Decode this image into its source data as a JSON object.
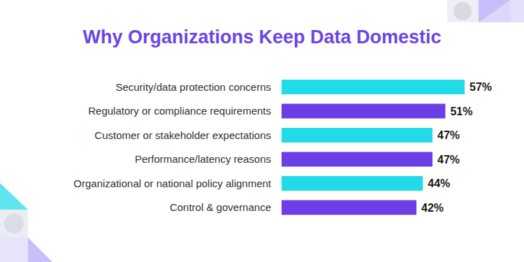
{
  "chart_data": {
    "type": "bar",
    "title": "Why Organizations Keep Data Domestic",
    "orientation": "horizontal",
    "categories": [
      "Security/data protection concerns",
      "Regulatory or compliance requirements",
      "Customer or stakeholder expectations",
      "Performance/latency reasons",
      "Organizational or national policy alignment",
      "Control & governance"
    ],
    "values": [
      57,
      51,
      47,
      47,
      44,
      42
    ],
    "value_labels": [
      "57%",
      "51%",
      "47%",
      "47%",
      "44%",
      "42%"
    ],
    "colors": [
      "#22dbe8",
      "#6b3fe6",
      "#22dbe8",
      "#6b3fe6",
      "#22dbe8",
      "#6b3fe6"
    ],
    "xlim": [
      0,
      57
    ],
    "data_labels": true,
    "tick_labels": "y",
    "grid": false
  }
}
